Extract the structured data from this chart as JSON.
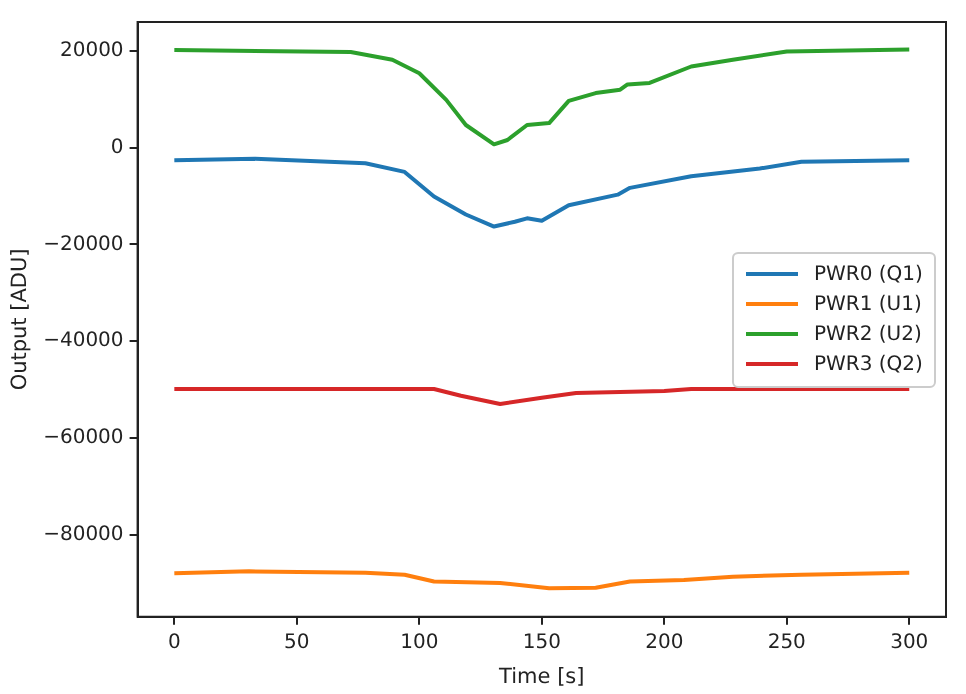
{
  "chart_data": {
    "type": "line",
    "xlabel": "Time [s]",
    "ylabel": "Output [ADU]",
    "xlim": [
      -15,
      315
    ],
    "xticks": [
      0,
      50,
      100,
      150,
      200,
      250,
      300
    ],
    "ylim": [
      -97000,
      26000
    ],
    "yticks": [
      -80000,
      -60000,
      -40000,
      -20000,
      0,
      20000
    ],
    "grid": false,
    "legend": "right",
    "marker": "none",
    "line_style": "solid",
    "series": [
      {
        "name": "PWR0 (Q1)",
        "color": "#1f77b4",
        "x": [
          0,
          33,
          78,
          94,
          106,
          119,
          130.5,
          139,
          144,
          150,
          161,
          181,
          186,
          211,
          239,
          256,
          300
        ],
        "values": [
          -2600,
          -2300,
          -3200,
          -5000,
          -10100,
          -13800,
          -16300,
          -15300,
          -14600,
          -15100,
          -11900,
          -9700,
          -8300,
          -5900,
          -4300,
          -2900,
          -2600
        ]
      },
      {
        "name": "PWR1 (U1)",
        "color": "#ff7f0e",
        "x": [
          0,
          30.5,
          78,
          94,
          106,
          133,
          153,
          172,
          186,
          208,
          228,
          256,
          300
        ],
        "values": [
          -88000,
          -87600,
          -87900,
          -88300,
          -89700,
          -90000,
          -91100,
          -91000,
          -89700,
          -89400,
          -88700,
          -88300,
          -87900
        ]
      },
      {
        "name": "PWR2 (U2)",
        "color": "#2ca02c",
        "x": [
          0,
          72,
          89,
          100,
          111,
          119,
          130.5,
          136,
          144,
          153,
          161,
          172,
          182,
          185,
          194,
          211,
          228,
          250,
          300
        ],
        "values": [
          20200,
          19800,
          18200,
          15400,
          9900,
          4700,
          700,
          1600,
          4700,
          5100,
          9700,
          11300,
          12000,
          13100,
          13400,
          16800,
          18200,
          19900,
          20300
        ]
      },
      {
        "name": "PWR3 (Q2)",
        "color": "#d62728",
        "x": [
          0,
          106,
          117,
          133,
          150,
          164,
          200,
          211,
          300
        ],
        "values": [
          -49900,
          -49900,
          -51300,
          -53000,
          -51700,
          -50700,
          -50300,
          -49900,
          -49900
        ]
      }
    ]
  }
}
